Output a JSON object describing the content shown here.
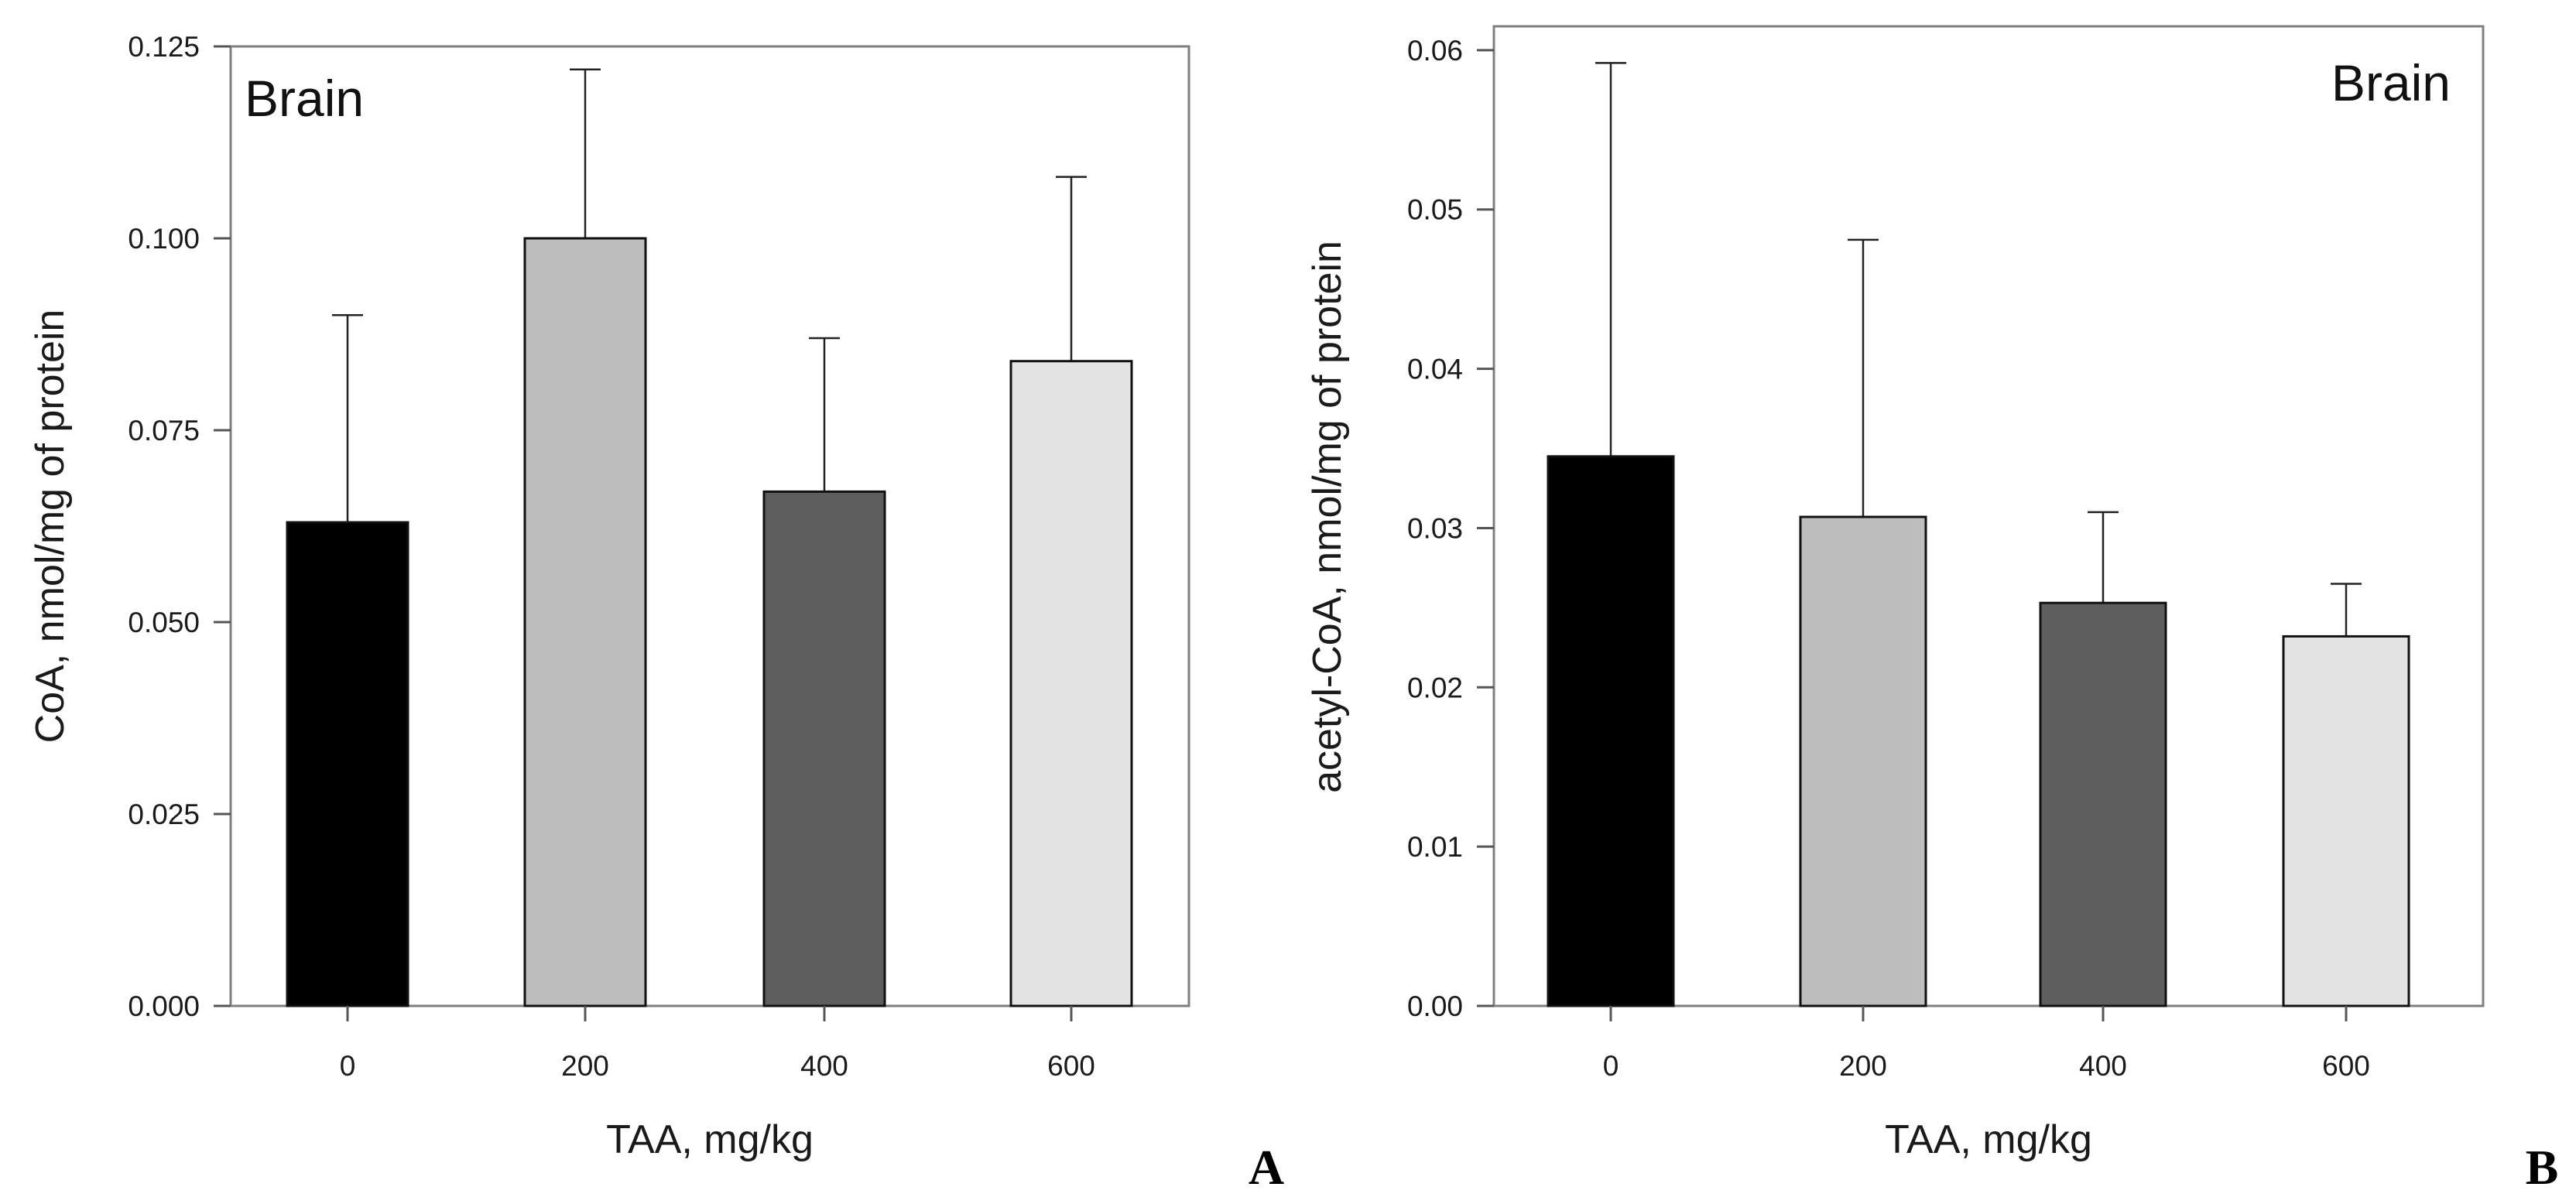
{
  "chart_data": [
    {
      "type": "bar",
      "panel": "A",
      "title": "Brain",
      "xlabel": "TAA, mg/kg",
      "ylabel": "CoA, nmol/mg of protein",
      "categories": [
        "0",
        "200",
        "400",
        "600"
      ],
      "values": [
        0.063,
        0.1,
        0.067,
        0.084
      ],
      "errors": [
        0.027,
        0.022,
        0.02,
        0.024
      ],
      "colors": [
        "#000000",
        "#bdbdbd",
        "#5e5e5e",
        "#e3e3e3"
      ],
      "ylim": [
        0,
        0.125
      ],
      "yticks": [
        0,
        0.025,
        0.05,
        0.075,
        0.1,
        0.125
      ],
      "ytick_labels": [
        "0.000",
        "0.025",
        "0.050",
        "0.075",
        "0.100",
        "0.125"
      ],
      "title_position": "top-left",
      "grid": false
    },
    {
      "type": "bar",
      "panel": "B",
      "title": "Brain",
      "xlabel": "TAA, mg/kg",
      "ylabel": "acetyl-CoA, nmol/mg of protein",
      "categories": [
        "0",
        "200",
        "400",
        "600"
      ],
      "values": [
        0.0345,
        0.0307,
        0.0253,
        0.0232
      ],
      "errors": [
        0.0247,
        0.0174,
        0.0057,
        0.0033
      ],
      "colors": [
        "#000000",
        "#bdbdbd",
        "#5e5e5e",
        "#e3e3e3"
      ],
      "ylim": [
        0,
        0.0615
      ],
      "yticks": [
        0,
        0.01,
        0.02,
        0.03,
        0.04,
        0.05,
        0.06
      ],
      "ytick_labels": [
        "0.00",
        "0.01",
        "0.02",
        "0.03",
        "0.04",
        "0.05",
        "0.06"
      ],
      "title_position": "top-right",
      "grid": false
    }
  ]
}
